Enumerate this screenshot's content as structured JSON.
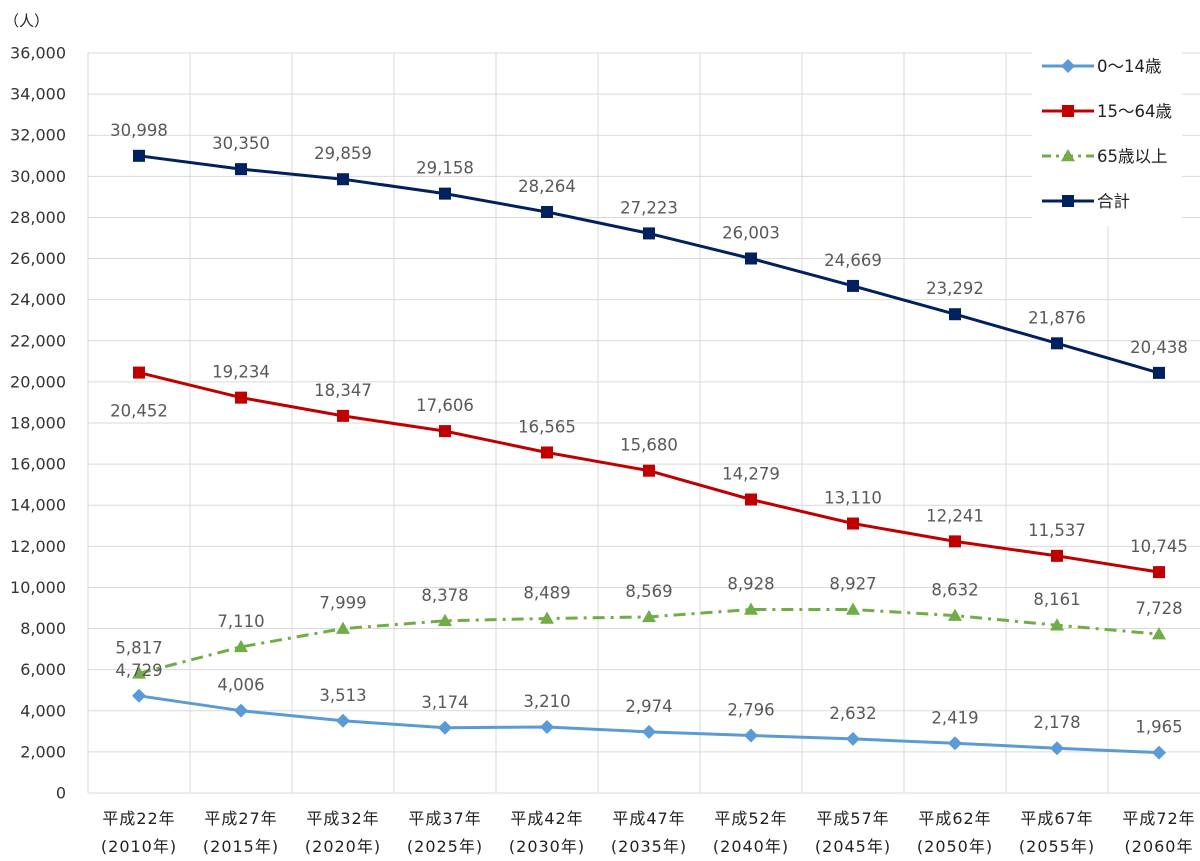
{
  "chart_data": {
    "type": "line",
    "unit_label": "（人）",
    "x": [
      "平成22年",
      "平成27年",
      "平成32年",
      "平成37年",
      "平成42年",
      "平成47年",
      "平成52年",
      "平成57年",
      "平成62年",
      "平成67年",
      "平成72年"
    ],
    "x_sub": [
      "(2010年)",
      "(2015年)",
      "(2020年)",
      "(2025年)",
      "(2030年)",
      "(2035年)",
      "(2040年)",
      "(2045年)",
      "(2050年)",
      "(2055年)",
      "(2060年"
    ],
    "ylim": [
      0,
      36000
    ],
    "ytick_step": 2000,
    "ytick_labels": [
      "0",
      "2,000",
      "4,000",
      "6,000",
      "8,000",
      "10,000",
      "12,000",
      "14,000",
      "16,000",
      "18,000",
      "20,000",
      "22,000",
      "24,000",
      "26,000",
      "28,000",
      "30,000",
      "32,000",
      "34,000",
      "36,000"
    ],
    "grid": true,
    "legend_position": "top-right",
    "series": [
      {
        "name": "0～14歳",
        "color": "#5b9bd5",
        "marker": "diamond",
        "dash": "solid",
        "values": [
          4729,
          4006,
          3513,
          3174,
          3210,
          2974,
          2796,
          2632,
          2419,
          2178,
          1965
        ],
        "labels": [
          "4,729",
          "4,006",
          "3,513",
          "3,174",
          "3,210",
          "2,974",
          "2,796",
          "2,632",
          "2,419",
          "2,178",
          "1,965"
        ]
      },
      {
        "name": "15～64歳",
        "color": "#c00000",
        "marker": "square",
        "dash": "solid",
        "values": [
          20452,
          19234,
          18347,
          17606,
          16565,
          15680,
          14279,
          13110,
          12241,
          11537,
          10745
        ],
        "labels": [
          "20,452",
          "19,234",
          "18,347",
          "17,606",
          "16,565",
          "15,680",
          "14,279",
          "13,110",
          "12,241",
          "11,537",
          "10,745"
        ]
      },
      {
        "name": "65歳以上",
        "color": "#70ad47",
        "marker": "triangle",
        "dash": "dashdot",
        "values": [
          5817,
          7110,
          7999,
          8378,
          8489,
          8569,
          8928,
          8927,
          8632,
          8161,
          7728
        ],
        "labels": [
          "5,817",
          "7,110",
          "7,999",
          "8,378",
          "8,489",
          "8,569",
          "8,928",
          "8,927",
          "8,632",
          "8,161",
          "7,728"
        ]
      },
      {
        "name": "合計",
        "color": "#002060",
        "marker": "square",
        "dash": "solid",
        "values": [
          30998,
          30350,
          29859,
          29158,
          28264,
          27223,
          26003,
          24669,
          23292,
          21876,
          20438
        ],
        "labels": [
          "30,998",
          "30,350",
          "29,859",
          "29,158",
          "28,264",
          "27,223",
          "26,003",
          "24,669",
          "23,292",
          "21,876",
          "20,438"
        ]
      }
    ]
  }
}
